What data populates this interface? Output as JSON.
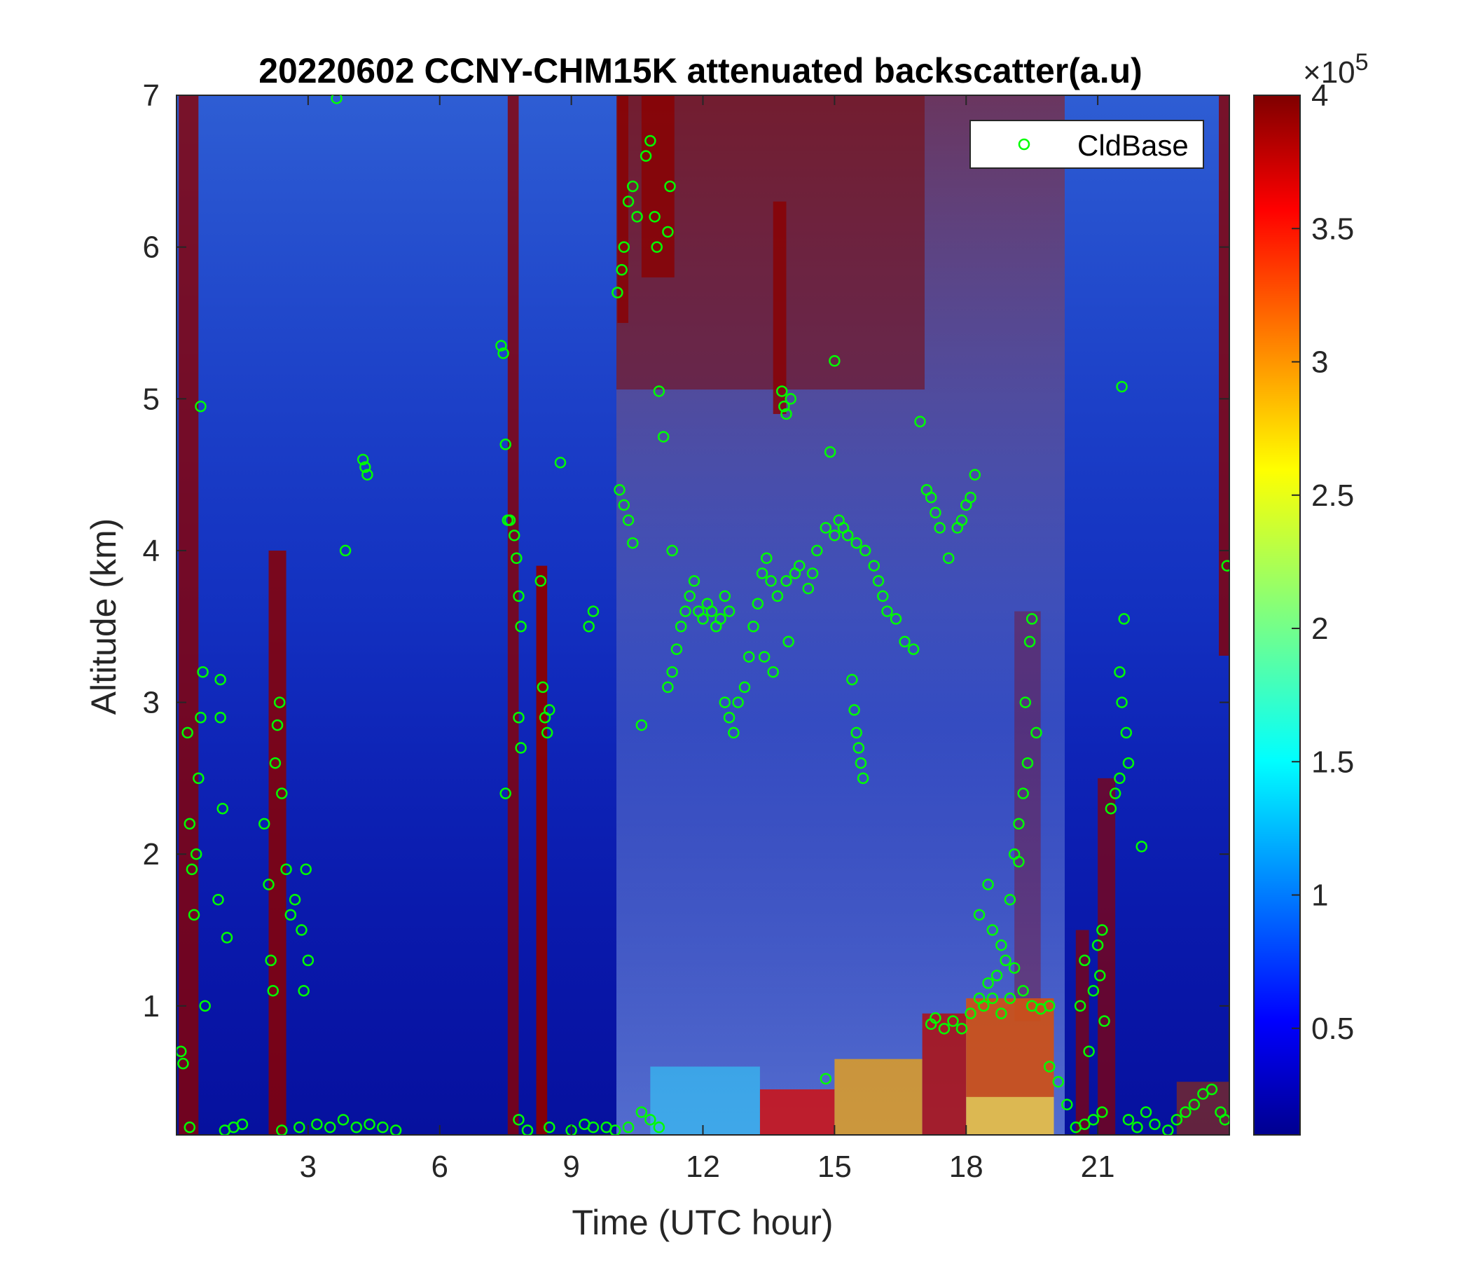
{
  "chart_data": {
    "type": "heatmap",
    "title": "20220602 CCNY-CHM15K attenuated backscatter(a.u)",
    "xlabel": "Time (UTC hour)",
    "ylabel": "Altitude (km)",
    "xlim": [
      0,
      24
    ],
    "ylim": [
      0.15,
      7
    ],
    "xticks": [
      3,
      6,
      9,
      12,
      15,
      18,
      21
    ],
    "yticks": [
      1,
      2,
      3,
      4,
      5,
      6,
      7
    ],
    "colorbar": {
      "range": [
        0.1,
        4
      ],
      "ticks": [
        0.5,
        1,
        1.5,
        2,
        2.5,
        3,
        3.5,
        4
      ],
      "tick_labels": [
        "0.5",
        "1",
        "1.5",
        "2",
        "2.5",
        "3",
        "3.5",
        "4"
      ],
      "exponent_label": "×10",
      "exponent": "5",
      "colormap": "jet"
    },
    "legend": {
      "placement": "top-right",
      "label": "CldBase"
    },
    "series": [
      {
        "name": "CldBase",
        "marker": "circle",
        "color": "#00ff00",
        "points": [
          [
            0.1,
            0.7
          ],
          [
            0.15,
            0.62
          ],
          [
            0.25,
            2.8
          ],
          [
            0.3,
            2.2
          ],
          [
            0.35,
            1.9
          ],
          [
            0.4,
            1.6
          ],
          [
            0.45,
            2.0
          ],
          [
            0.5,
            2.5
          ],
          [
            0.55,
            2.9
          ],
          [
            0.6,
            3.2
          ],
          [
            0.65,
            1.0
          ],
          [
            0.55,
            4.95
          ],
          [
            0.3,
            0.2
          ],
          [
            1.1,
            0.18
          ],
          [
            1.3,
            0.2
          ],
          [
            1.5,
            0.22
          ],
          [
            1.0,
            2.9
          ],
          [
            1.05,
            2.3
          ],
          [
            1.15,
            1.45
          ],
          [
            0.95,
            1.7
          ],
          [
            1.0,
            3.15
          ],
          [
            2.0,
            2.2
          ],
          [
            2.1,
            1.8
          ],
          [
            2.15,
            1.3
          ],
          [
            2.25,
            2.6
          ],
          [
            2.3,
            2.85
          ],
          [
            2.35,
            3.0
          ],
          [
            2.4,
            2.4
          ],
          [
            2.5,
            1.9
          ],
          [
            2.2,
            1.1
          ],
          [
            2.6,
            1.6
          ],
          [
            2.7,
            1.7
          ],
          [
            2.85,
            1.5
          ],
          [
            2.9,
            1.1
          ],
          [
            2.95,
            1.9
          ],
          [
            3.0,
            1.3
          ],
          [
            2.4,
            0.18
          ],
          [
            2.8,
            0.2
          ],
          [
            3.2,
            0.22
          ],
          [
            3.5,
            0.2
          ],
          [
            3.8,
            0.25
          ],
          [
            4.1,
            0.2
          ],
          [
            4.4,
            0.22
          ],
          [
            4.7,
            0.2
          ],
          [
            5.0,
            0.18
          ],
          [
            3.65,
            6.98
          ],
          [
            3.85,
            4.0
          ],
          [
            4.25,
            4.6
          ],
          [
            4.3,
            4.55
          ],
          [
            4.35,
            4.5
          ],
          [
            7.4,
            5.35
          ],
          [
            7.45,
            5.3
          ],
          [
            7.5,
            4.7
          ],
          [
            7.55,
            4.2
          ],
          [
            7.6,
            4.2
          ],
          [
            7.7,
            4.1
          ],
          [
            7.75,
            3.95
          ],
          [
            7.8,
            3.7
          ],
          [
            7.85,
            3.5
          ],
          [
            7.5,
            2.4
          ],
          [
            7.8,
            2.9
          ],
          [
            7.85,
            2.7
          ],
          [
            8.3,
            3.8
          ],
          [
            8.35,
            3.1
          ],
          [
            8.4,
            2.9
          ],
          [
            8.45,
            2.8
          ],
          [
            8.5,
            2.95
          ],
          [
            7.8,
            0.25
          ],
          [
            8.0,
            0.18
          ],
          [
            8.5,
            0.2
          ],
          [
            9.0,
            0.18
          ],
          [
            9.3,
            0.22
          ],
          [
            9.5,
            0.2
          ],
          [
            9.4,
            3.5
          ],
          [
            9.5,
            3.6
          ],
          [
            8.75,
            4.58
          ],
          [
            10.1,
            4.4
          ],
          [
            10.2,
            4.3
          ],
          [
            10.3,
            4.2
          ],
          [
            10.4,
            4.05
          ],
          [
            10.05,
            5.7
          ],
          [
            10.15,
            5.85
          ],
          [
            10.2,
            6.0
          ],
          [
            10.3,
            6.3
          ],
          [
            10.4,
            6.4
          ],
          [
            10.5,
            6.2
          ],
          [
            10.6,
            2.85
          ],
          [
            10.7,
            6.6
          ],
          [
            10.8,
            6.7
          ],
          [
            10.9,
            6.2
          ],
          [
            10.95,
            6.0
          ],
          [
            11.0,
            5.05
          ],
          [
            11.1,
            4.75
          ],
          [
            11.2,
            6.1
          ],
          [
            11.25,
            6.4
          ],
          [
            11.3,
            4.0
          ],
          [
            9.8,
            0.2
          ],
          [
            10.0,
            0.18
          ],
          [
            10.3,
            0.2
          ],
          [
            10.6,
            0.3
          ],
          [
            10.8,
            0.25
          ],
          [
            11.0,
            0.2
          ],
          [
            11.2,
            3.1
          ],
          [
            11.3,
            3.2
          ],
          [
            11.4,
            3.35
          ],
          [
            11.5,
            3.5
          ],
          [
            11.6,
            3.6
          ],
          [
            11.7,
            3.7
          ],
          [
            11.8,
            3.8
          ],
          [
            11.9,
            3.6
          ],
          [
            12.0,
            3.55
          ],
          [
            12.1,
            3.65
          ],
          [
            12.2,
            3.6
          ],
          [
            12.3,
            3.5
          ],
          [
            12.4,
            3.55
          ],
          [
            12.5,
            3.7
          ],
          [
            12.6,
            3.6
          ],
          [
            12.5,
            3.0
          ],
          [
            12.6,
            2.9
          ],
          [
            12.7,
            2.8
          ],
          [
            12.8,
            3.0
          ],
          [
            12.95,
            3.1
          ],
          [
            13.05,
            3.3
          ],
          [
            13.15,
            3.5
          ],
          [
            13.25,
            3.65
          ],
          [
            13.35,
            3.85
          ],
          [
            13.45,
            3.95
          ],
          [
            13.55,
            3.8
          ],
          [
            13.7,
            3.7
          ],
          [
            13.9,
            3.8
          ],
          [
            14.1,
            3.85
          ],
          [
            14.2,
            3.9
          ],
          [
            14.4,
            3.75
          ],
          [
            14.5,
            3.85
          ],
          [
            14.6,
            4.0
          ],
          [
            13.8,
            5.05
          ],
          [
            13.85,
            4.95
          ],
          [
            13.9,
            4.9
          ],
          [
            14.0,
            5.0
          ],
          [
            13.95,
            3.4
          ],
          [
            13.6,
            3.2
          ],
          [
            13.4,
            3.3
          ],
          [
            14.8,
            4.15
          ],
          [
            15.0,
            4.1
          ],
          [
            15.1,
            4.2
          ],
          [
            15.2,
            4.15
          ],
          [
            15.3,
            4.1
          ],
          [
            15.5,
            4.05
          ],
          [
            15.7,
            4.0
          ],
          [
            15.9,
            3.9
          ],
          [
            16.0,
            3.8
          ],
          [
            16.1,
            3.7
          ],
          [
            16.2,
            3.6
          ],
          [
            16.4,
            3.55
          ],
          [
            16.6,
            3.4
          ],
          [
            16.8,
            3.35
          ],
          [
            15.0,
            5.25
          ],
          [
            14.9,
            4.65
          ],
          [
            15.4,
            3.15
          ],
          [
            15.45,
            2.95
          ],
          [
            15.5,
            2.8
          ],
          [
            15.55,
            2.7
          ],
          [
            15.6,
            2.6
          ],
          [
            15.65,
            2.5
          ],
          [
            14.8,
            0.52
          ],
          [
            16.95,
            4.85
          ],
          [
            17.1,
            4.4
          ],
          [
            17.2,
            4.35
          ],
          [
            17.3,
            4.25
          ],
          [
            17.4,
            4.15
          ],
          [
            17.6,
            3.95
          ],
          [
            17.8,
            4.15
          ],
          [
            17.9,
            4.2
          ],
          [
            18.0,
            4.3
          ],
          [
            18.1,
            4.35
          ],
          [
            18.2,
            4.5
          ],
          [
            17.2,
            0.88
          ],
          [
            17.3,
            0.92
          ],
          [
            17.5,
            0.85
          ],
          [
            17.7,
            0.9
          ],
          [
            17.9,
            0.85
          ],
          [
            18.1,
            0.95
          ],
          [
            18.3,
            1.05
          ],
          [
            18.5,
            1.15
          ],
          [
            18.7,
            1.2
          ],
          [
            18.9,
            1.3
          ],
          [
            19.1,
            1.25
          ],
          [
            19.3,
            1.1
          ],
          [
            19.5,
            1.0
          ],
          [
            19.7,
            0.98
          ],
          [
            19.9,
            1.0
          ],
          [
            18.4,
            1.0
          ],
          [
            18.6,
            1.05
          ],
          [
            18.8,
            0.95
          ],
          [
            19.0,
            1.05
          ],
          [
            18.3,
            1.6
          ],
          [
            18.5,
            1.8
          ],
          [
            18.6,
            1.5
          ],
          [
            18.8,
            1.4
          ],
          [
            19.0,
            1.7
          ],
          [
            19.1,
            2.0
          ],
          [
            19.2,
            2.2
          ],
          [
            19.3,
            2.4
          ],
          [
            19.4,
            2.6
          ],
          [
            19.45,
            3.4
          ],
          [
            19.5,
            3.55
          ],
          [
            19.35,
            3.0
          ],
          [
            19.6,
            2.8
          ],
          [
            19.2,
            1.95
          ],
          [
            19.9,
            0.6
          ],
          [
            20.1,
            0.5
          ],
          [
            20.3,
            0.35
          ],
          [
            20.5,
            0.2
          ],
          [
            20.7,
            0.22
          ],
          [
            20.9,
            0.25
          ],
          [
            21.1,
            0.3
          ],
          [
            20.6,
            1.0
          ],
          [
            20.7,
            1.3
          ],
          [
            20.9,
            1.1
          ],
          [
            21.0,
            1.4
          ],
          [
            21.05,
            1.2
          ],
          [
            21.1,
            1.5
          ],
          [
            21.15,
            0.9
          ],
          [
            20.8,
            0.7
          ],
          [
            21.3,
            2.3
          ],
          [
            21.4,
            2.4
          ],
          [
            21.5,
            2.5
          ],
          [
            21.5,
            3.2
          ],
          [
            21.55,
            3.0
          ],
          [
            21.65,
            2.8
          ],
          [
            21.7,
            2.6
          ],
          [
            21.6,
            3.55
          ],
          [
            21.55,
            5.08
          ],
          [
            22.0,
            2.05
          ],
          [
            21.7,
            0.25
          ],
          [
            21.9,
            0.2
          ],
          [
            22.1,
            0.3
          ],
          [
            22.3,
            0.22
          ],
          [
            22.6,
            0.18
          ],
          [
            22.8,
            0.25
          ],
          [
            23.0,
            0.3
          ],
          [
            23.2,
            0.35
          ],
          [
            23.4,
            0.42
          ],
          [
            23.6,
            0.45
          ],
          [
            23.8,
            0.3
          ],
          [
            23.9,
            0.25
          ],
          [
            23.95,
            3.9
          ]
        ]
      }
    ]
  }
}
